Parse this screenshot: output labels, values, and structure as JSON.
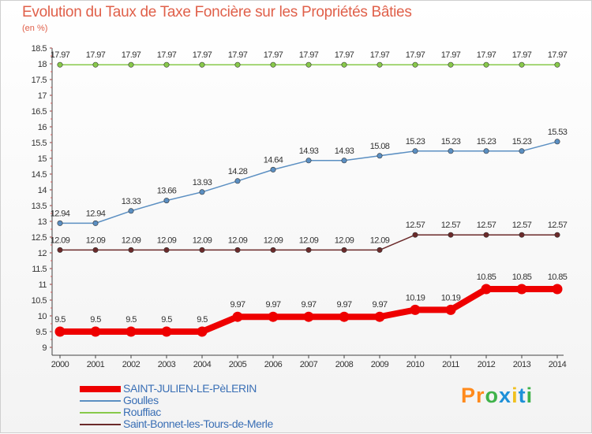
{
  "header": {
    "title": "Evolution du Taux de Taxe Foncière sur les Propriétés Bâties",
    "subtitle": "(en %)"
  },
  "brand": {
    "letters": [
      "P",
      "r",
      "o",
      "x",
      "i",
      "t",
      "i"
    ],
    "colors": [
      "#ff8a1c",
      "#ff8a1c",
      "#3fb24a",
      "#1e90d8",
      "#f0c020",
      "#1e90d8",
      "#3fb24a"
    ]
  },
  "chart_data": {
    "type": "line",
    "title": "Evolution du Taux de Taxe Foncière sur les Propriétés Bâties",
    "ylabel": "(en %)",
    "xlabel": "",
    "x": [
      "2000",
      "2001",
      "2002",
      "2003",
      "2004",
      "2005",
      "2006",
      "2007",
      "2008",
      "2009",
      "2010",
      "2011",
      "2012",
      "2013",
      "2014"
    ],
    "yticks": [
      9,
      9.5,
      10,
      10.5,
      11,
      11.5,
      12,
      12.5,
      13,
      13.5,
      14,
      14.5,
      15,
      15.5,
      16,
      16.5,
      17,
      17.5,
      18,
      18.5
    ],
    "ylim": [
      9,
      18.5
    ],
    "grid": false,
    "legend_position": "bottom-left",
    "series": [
      {
        "name": "Rouffiac",
        "color": "#88c94a",
        "values": [
          17.97,
          17.97,
          17.97,
          17.97,
          17.97,
          17.97,
          17.97,
          17.97,
          17.97,
          17.97,
          17.97,
          17.97,
          17.97,
          17.97,
          17.97
        ],
        "labels": [
          "17.97",
          "17.97",
          "17.97",
          "17.97",
          "17.97",
          "17.97",
          "17.97",
          "17.97",
          "17.97",
          "17.97",
          "17.97",
          "17.97",
          "17.97",
          "17.97",
          "17.97"
        ]
      },
      {
        "name": "Goulles",
        "color": "#5b8fc2",
        "values": [
          12.94,
          12.94,
          13.33,
          13.66,
          13.93,
          14.28,
          14.64,
          14.93,
          14.93,
          15.08,
          15.23,
          15.23,
          15.23,
          15.23,
          15.53
        ],
        "labels": [
          "12.94",
          "12.94",
          "13.33",
          "13.66",
          "13.93",
          "14.28",
          "14.64",
          "14.93",
          "14.93",
          "15.08",
          "15.23",
          "15.23",
          "15.23",
          "15.23",
          "15.53"
        ]
      },
      {
        "name": "Saint-Bonnet-les-Tours-de-Merle",
        "color": "#6b2a2a",
        "values": [
          12.09,
          12.09,
          12.09,
          12.09,
          12.09,
          12.09,
          12.09,
          12.09,
          12.09,
          12.09,
          12.57,
          12.57,
          12.57,
          12.57,
          12.57
        ],
        "labels": [
          "12.09",
          "12.09",
          "12.09",
          "12.09",
          "12.09",
          "12.09",
          "12.09",
          "12.09",
          "12.09",
          "12.09",
          "12.57",
          "12.57",
          "12.57",
          "12.57",
          "12.57"
        ]
      },
      {
        "name": "SAINT-JULIEN-LE-PèLERIN",
        "color": "#ee0000",
        "bold": true,
        "values": [
          9.5,
          9.5,
          9.5,
          9.5,
          9.5,
          9.97,
          9.97,
          9.97,
          9.97,
          9.97,
          10.19,
          10.19,
          10.85,
          10.85,
          10.85
        ],
        "labels": [
          "9.5",
          "9.5",
          "9.5",
          "9.5",
          "9.5",
          "9.97",
          "9.97",
          "9.97",
          "9.97",
          "9.97",
          "10.19",
          "10.19",
          "10.85",
          "10.85",
          "10.85"
        ]
      }
    ],
    "legend": [
      "SAINT-JULIEN-LE-PèLERIN",
      "Goulles",
      "Rouffiac",
      "Saint-Bonnet-les-Tours-de-Merle"
    ]
  }
}
